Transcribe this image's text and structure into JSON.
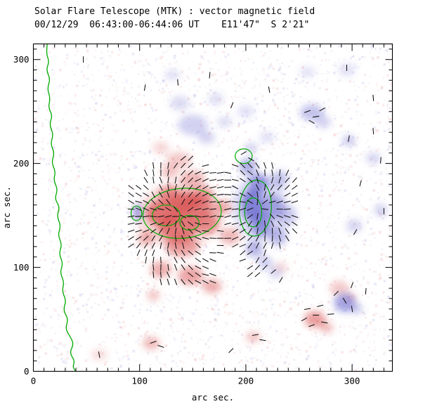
{
  "header": {
    "title": "Solar Flare Telescope (MTK) : vector magnetic field",
    "subtitle": "00/12/29  06:43:00-06:44:06 UT    E11'47\"  S 2'21\""
  },
  "colors": {
    "positive": "#d94f4f",
    "negative": "#6b6bd0",
    "contour": "#00aa00",
    "vector": "#111111",
    "frame": "#000000",
    "background": "#ffffff"
  },
  "chart_data": {
    "type": "heatmap",
    "title": "Solar Flare Telescope (MTK) : vector magnetic field",
    "subtitle": "00/12/29  06:43:00-06:44:06 UT    E11'47\"  S 2'21\"",
    "xlabel": "arc sec.",
    "ylabel": "arc sec.",
    "xlim": [
      0,
      338
    ],
    "ylim": [
      0,
      315
    ],
    "xticks": [
      0,
      100,
      200,
      300
    ],
    "yticks": [
      0,
      100,
      200,
      300
    ],
    "minor_tick_step": 10,
    "noise": {
      "count": 3200,
      "seed": 42
    },
    "polarity_regions": {
      "positive": [
        {
          "x": 138,
          "y": 150,
          "rx": 40,
          "ry": 32,
          "o": 0.2
        },
        {
          "x": 122,
          "y": 152,
          "rx": 16,
          "ry": 13,
          "o": 0.75
        },
        {
          "x": 136,
          "y": 138,
          "rx": 18,
          "ry": 14,
          "o": 0.7
        },
        {
          "x": 152,
          "y": 158,
          "rx": 16,
          "ry": 12,
          "o": 0.65
        },
        {
          "x": 163,
          "y": 143,
          "rx": 12,
          "ry": 10,
          "o": 0.6
        },
        {
          "x": 143,
          "y": 163,
          "rx": 14,
          "ry": 10,
          "o": 0.7
        },
        {
          "x": 128,
          "y": 170,
          "rx": 10,
          "ry": 8,
          "o": 0.6
        },
        {
          "x": 140,
          "y": 120,
          "rx": 16,
          "ry": 10,
          "o": 0.5
        },
        {
          "x": 160,
          "y": 170,
          "rx": 10,
          "ry": 8,
          "o": 0.5
        },
        {
          "x": 178,
          "y": 158,
          "rx": 9,
          "ry": 7,
          "o": 0.45
        },
        {
          "x": 150,
          "y": 185,
          "rx": 12,
          "ry": 8,
          "o": 0.4
        },
        {
          "x": 128,
          "y": 192,
          "rx": 8,
          "ry": 6,
          "o": 0.35
        },
        {
          "x": 137,
          "y": 203,
          "rx": 12,
          "ry": 8,
          "o": 0.3
        },
        {
          "x": 120,
          "y": 215,
          "rx": 8,
          "ry": 6,
          "o": 0.22
        },
        {
          "x": 120,
          "y": 98,
          "rx": 10,
          "ry": 8,
          "o": 0.45
        },
        {
          "x": 148,
          "y": 92,
          "rx": 12,
          "ry": 9,
          "o": 0.5
        },
        {
          "x": 168,
          "y": 82,
          "rx": 9,
          "ry": 7,
          "o": 0.45
        },
        {
          "x": 185,
          "y": 130,
          "rx": 10,
          "ry": 8,
          "o": 0.4
        },
        {
          "x": 106,
          "y": 128,
          "rx": 8,
          "ry": 7,
          "o": 0.45
        },
        {
          "x": 113,
          "y": 73,
          "rx": 6,
          "ry": 5,
          "o": 0.35
        },
        {
          "x": 111,
          "y": 27,
          "rx": 8,
          "ry": 6,
          "o": 0.4
        },
        {
          "x": 207,
          "y": 33,
          "rx": 7,
          "ry": 5,
          "o": 0.35
        },
        {
          "x": 265,
          "y": 50,
          "rx": 10,
          "ry": 8,
          "o": 0.55
        },
        {
          "x": 276,
          "y": 42,
          "rx": 6,
          "ry": 5,
          "o": 0.4
        },
        {
          "x": 288,
          "y": 80,
          "rx": 9,
          "ry": 7,
          "o": 0.3
        },
        {
          "x": 298,
          "y": 70,
          "rx": 6,
          "ry": 5,
          "o": 0.25
        },
        {
          "x": 233,
          "y": 100,
          "rx": 6,
          "ry": 5,
          "o": 0.22
        },
        {
          "x": 62,
          "y": 16,
          "rx": 7,
          "ry": 5,
          "o": 0.22
        }
      ],
      "negative": [
        {
          "x": 213,
          "y": 158,
          "rx": 26,
          "ry": 32,
          "o": 0.22
        },
        {
          "x": 206,
          "y": 160,
          "rx": 10,
          "ry": 16,
          "o": 0.8
        },
        {
          "x": 214,
          "y": 142,
          "rx": 9,
          "ry": 12,
          "o": 0.7
        },
        {
          "x": 212,
          "y": 180,
          "rx": 9,
          "ry": 10,
          "o": 0.65
        },
        {
          "x": 225,
          "y": 158,
          "rx": 10,
          "ry": 12,
          "o": 0.55
        },
        {
          "x": 230,
          "y": 130,
          "rx": 9,
          "ry": 9,
          "o": 0.45
        },
        {
          "x": 202,
          "y": 197,
          "rx": 8,
          "ry": 8,
          "o": 0.55
        },
        {
          "x": 232,
          "y": 185,
          "rx": 8,
          "ry": 8,
          "o": 0.4
        },
        {
          "x": 240,
          "y": 150,
          "rx": 8,
          "ry": 10,
          "o": 0.35
        },
        {
          "x": 208,
          "y": 118,
          "rx": 8,
          "ry": 8,
          "o": 0.5
        },
        {
          "x": 218,
          "y": 105,
          "rx": 7,
          "ry": 6,
          "o": 0.35
        },
        {
          "x": 98,
          "y": 153,
          "rx": 4,
          "ry": 8,
          "o": 0.7
        },
        {
          "x": 150,
          "y": 237,
          "rx": 14,
          "ry": 10,
          "o": 0.3
        },
        {
          "x": 138,
          "y": 258,
          "rx": 9,
          "ry": 7,
          "o": 0.25
        },
        {
          "x": 163,
          "y": 225,
          "rx": 8,
          "ry": 6,
          "o": 0.3
        },
        {
          "x": 172,
          "y": 262,
          "rx": 7,
          "ry": 6,
          "o": 0.22
        },
        {
          "x": 131,
          "y": 285,
          "rx": 7,
          "ry": 5,
          "o": 0.22
        },
        {
          "x": 180,
          "y": 240,
          "rx": 7,
          "ry": 5,
          "o": 0.25
        },
        {
          "x": 205,
          "y": 215,
          "rx": 6,
          "ry": 5,
          "o": 0.3
        },
        {
          "x": 220,
          "y": 225,
          "rx": 7,
          "ry": 5,
          "o": 0.22
        },
        {
          "x": 200,
          "y": 250,
          "rx": 8,
          "ry": 6,
          "o": 0.2
        },
        {
          "x": 262,
          "y": 249,
          "rx": 11,
          "ry": 8,
          "o": 0.4
        },
        {
          "x": 273,
          "y": 240,
          "rx": 7,
          "ry": 6,
          "o": 0.3
        },
        {
          "x": 297,
          "y": 222,
          "rx": 6,
          "ry": 5,
          "o": 0.4
        },
        {
          "x": 320,
          "y": 205,
          "rx": 7,
          "ry": 5,
          "o": 0.3
        },
        {
          "x": 327,
          "y": 155,
          "rx": 6,
          "ry": 6,
          "o": 0.3
        },
        {
          "x": 302,
          "y": 140,
          "rx": 7,
          "ry": 6,
          "o": 0.3
        },
        {
          "x": 293,
          "y": 66,
          "rx": 10,
          "ry": 9,
          "o": 0.6
        },
        {
          "x": 304,
          "y": 60,
          "rx": 6,
          "ry": 5,
          "o": 0.35
        },
        {
          "x": 228,
          "y": 95,
          "rx": 7,
          "ry": 6,
          "o": 0.25
        },
        {
          "x": 295,
          "y": 290,
          "rx": 8,
          "ry": 6,
          "o": 0.2
        },
        {
          "x": 258,
          "y": 288,
          "rx": 7,
          "ry": 5,
          "o": 0.2
        }
      ]
    },
    "field_contours": [
      {
        "cx": 140,
        "cy": 152,
        "rx": 37,
        "ry": 24,
        "rot": -5
      },
      {
        "cx": 125,
        "cy": 150,
        "rx": 13,
        "ry": 10,
        "rot": 0
      },
      {
        "cx": 147,
        "cy": 143,
        "rx": 9,
        "ry": 7,
        "rot": 0
      },
      {
        "cx": 209,
        "cy": 157,
        "rx": 15,
        "ry": 27,
        "rot": 4
      },
      {
        "cx": 207,
        "cy": 153,
        "rx": 8,
        "ry": 14,
        "rot": 0
      },
      {
        "cx": 198,
        "cy": 207,
        "rx": 8,
        "ry": 7,
        "rot": 0
      },
      {
        "cx": 97,
        "cy": 152,
        "rx": 5,
        "ry": 7,
        "rot": 0
      }
    ],
    "limb_contour": [
      [
        13,
        315
      ],
      [
        12,
        306
      ],
      [
        15,
        298
      ],
      [
        12,
        290
      ],
      [
        16,
        281
      ],
      [
        13,
        272
      ],
      [
        16,
        263
      ],
      [
        14,
        254
      ],
      [
        18,
        246
      ],
      [
        15,
        237
      ],
      [
        19,
        228
      ],
      [
        16,
        219
      ],
      [
        20,
        210
      ],
      [
        17,
        201
      ],
      [
        21,
        192
      ],
      [
        19,
        184
      ],
      [
        23,
        175
      ],
      [
        20,
        166
      ],
      [
        25,
        158
      ],
      [
        22,
        149
      ],
      [
        26,
        140
      ],
      [
        23,
        131
      ],
      [
        27,
        122
      ],
      [
        24,
        113
      ],
      [
        28,
        104
      ],
      [
        25,
        95
      ],
      [
        29,
        86
      ],
      [
        27,
        77
      ],
      [
        31,
        68
      ],
      [
        28,
        59
      ],
      [
        33,
        50
      ],
      [
        30,
        41
      ],
      [
        35,
        33
      ],
      [
        38,
        26
      ],
      [
        34,
        18
      ],
      [
        39,
        10
      ],
      [
        37,
        4
      ],
      [
        40,
        0
      ]
    ],
    "poles": {
      "positive": {
        "x": 138,
        "y": 150,
        "s": 1.0,
        "r": 56
      },
      "negative": {
        "x": 211,
        "y": 158,
        "s": 0.9,
        "r": 46
      }
    },
    "vector_grid": {
      "x0": 92,
      "x1": 246,
      "y0": 86,
      "y1": 216,
      "step": 7,
      "len": 6.4,
      "seed": 7,
      "drop": 0.12,
      "jitter": 24,
      "extra_mask": [
        {
          "x": 150,
          "y": 88,
          "r": 20
        },
        {
          "x": 126,
          "y": 96,
          "r": 16
        },
        {
          "x": 205,
          "y": 103,
          "r": 14
        }
      ]
    },
    "scatter_vectors": [
      {
        "x": 105,
        "y": 273,
        "a": 80
      },
      {
        "x": 136,
        "y": 278,
        "a": 95
      },
      {
        "x": 166,
        "y": 285,
        "a": 85
      },
      {
        "x": 47,
        "y": 300,
        "a": 90
      },
      {
        "x": 187,
        "y": 256,
        "a": 70
      },
      {
        "x": 222,
        "y": 271,
        "a": 100
      },
      {
        "x": 258,
        "y": 250,
        "a": 20
      },
      {
        "x": 266,
        "y": 245,
        "a": 10
      },
      {
        "x": 272,
        "y": 252,
        "a": 30
      },
      {
        "x": 262,
        "y": 240,
        "a": 150
      },
      {
        "x": 297,
        "y": 224,
        "a": 80
      },
      {
        "x": 320,
        "y": 231,
        "a": 95
      },
      {
        "x": 327,
        "y": 203,
        "a": 85
      },
      {
        "x": 308,
        "y": 181,
        "a": 75
      },
      {
        "x": 330,
        "y": 154,
        "a": 90
      },
      {
        "x": 303,
        "y": 134,
        "a": 60
      },
      {
        "x": 320,
        "y": 263,
        "a": 95
      },
      {
        "x": 295,
        "y": 292,
        "a": 90
      },
      {
        "x": 226,
        "y": 96,
        "a": 40
      },
      {
        "x": 233,
        "y": 88,
        "a": 60
      },
      {
        "x": 258,
        "y": 60,
        "a": 10
      },
      {
        "x": 266,
        "y": 54,
        "a": 0
      },
      {
        "x": 274,
        "y": 47,
        "a": 170
      },
      {
        "x": 262,
        "y": 44,
        "a": 20
      },
      {
        "x": 270,
        "y": 63,
        "a": 15
      },
      {
        "x": 280,
        "y": 55,
        "a": 5
      },
      {
        "x": 255,
        "y": 50,
        "a": 30
      },
      {
        "x": 293,
        "y": 68,
        "a": 120
      },
      {
        "x": 300,
        "y": 60,
        "a": 100
      },
      {
        "x": 313,
        "y": 77,
        "a": 85
      },
      {
        "x": 300,
        "y": 83,
        "a": 70
      },
      {
        "x": 285,
        "y": 75,
        "a": 45
      },
      {
        "x": 209,
        "y": 35,
        "a": 10
      },
      {
        "x": 216,
        "y": 30,
        "a": 170
      },
      {
        "x": 186,
        "y": 20,
        "a": 45
      },
      {
        "x": 113,
        "y": 28,
        "a": 20
      },
      {
        "x": 120,
        "y": 24,
        "a": 160
      },
      {
        "x": 62,
        "y": 16,
        "a": 100
      },
      {
        "x": 198,
        "y": 210,
        "a": 30
      },
      {
        "x": 205,
        "y": 204,
        "a": 150
      }
    ]
  }
}
